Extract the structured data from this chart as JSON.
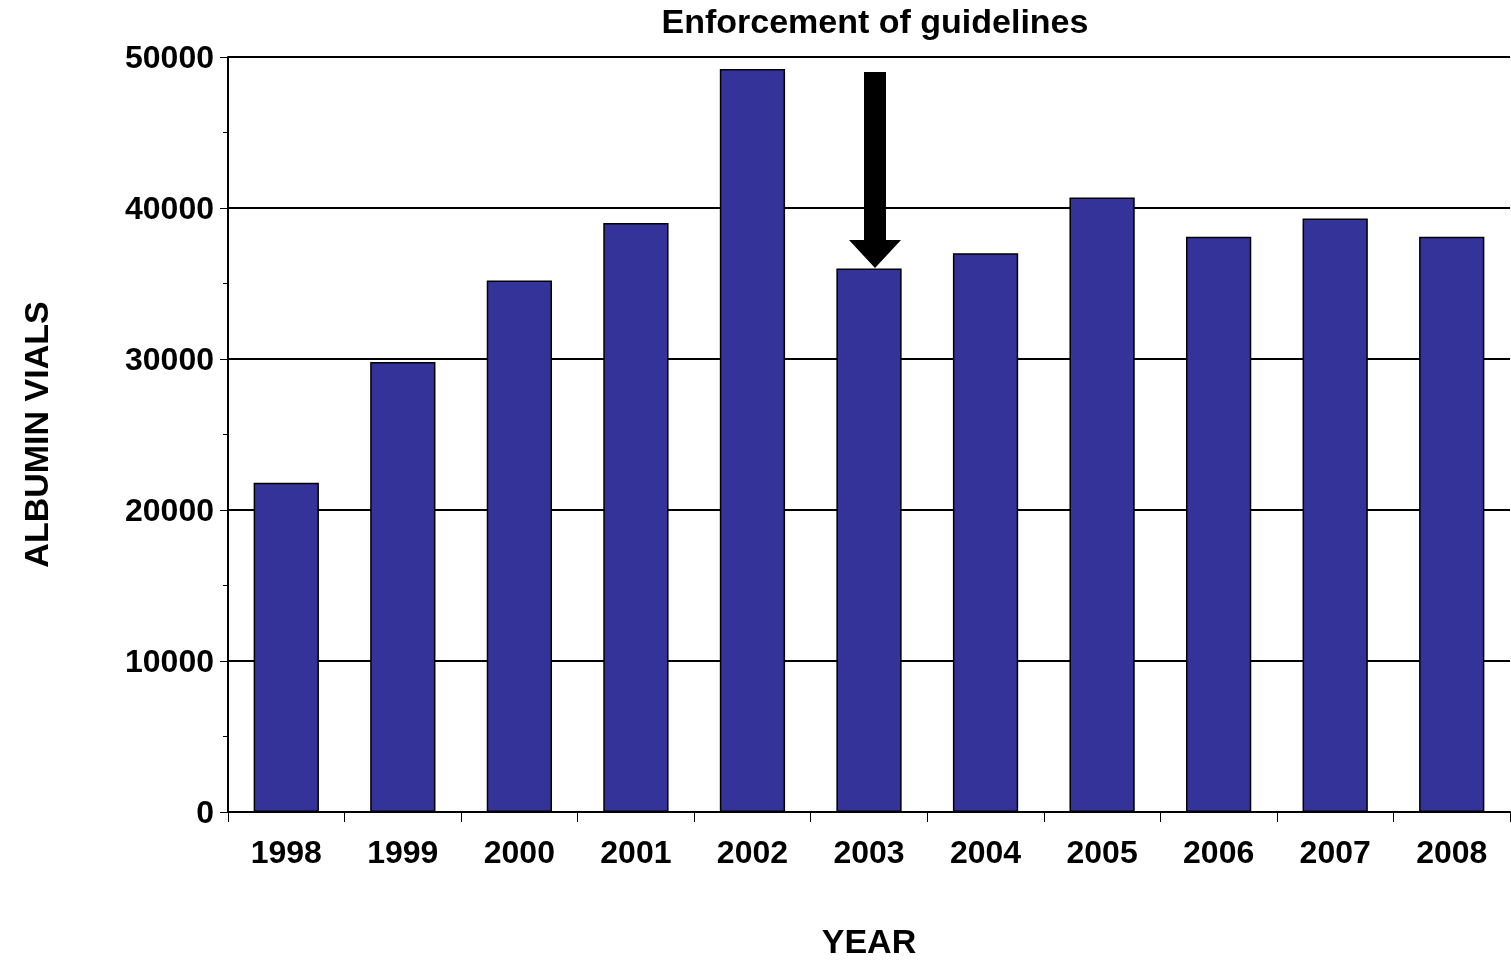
{
  "chart_data": {
    "type": "bar",
    "xlabel": "YEAR",
    "ylabel": "ALBUMIN VIALS",
    "categories": [
      "1998",
      "1999",
      "2000",
      "2001",
      "2002",
      "2003",
      "2004",
      "2005",
      "2006",
      "2007",
      "2008"
    ],
    "values": [
      21800,
      29800,
      35200,
      39000,
      49200,
      36000,
      37000,
      40700,
      38100,
      39300,
      38100
    ],
    "color": "#333399",
    "ylim": [
      0,
      50000
    ],
    "yticks": [
      0,
      10000,
      20000,
      30000,
      40000,
      50000
    ],
    "grid": "y",
    "annotations": [
      "Enforcement of guidelines"
    ]
  }
}
